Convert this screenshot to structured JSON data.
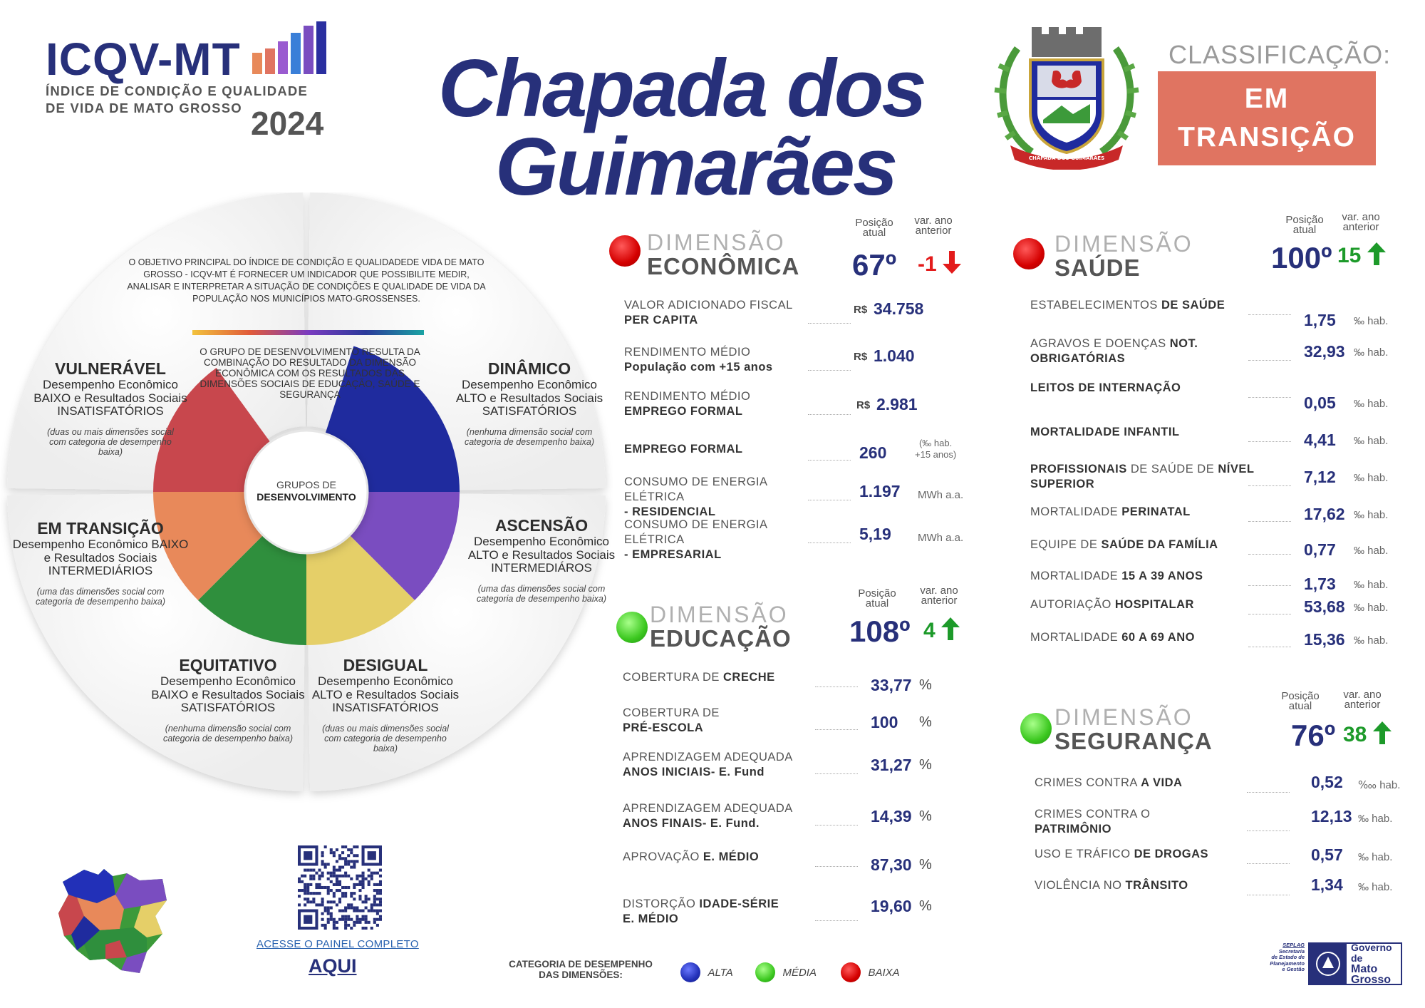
{
  "header": {
    "brand": "ICQV-MT",
    "subtitle_line1": "ÍNDICE DE CONDIÇÃO E QUALIDADE",
    "subtitle_line2": "DE VIDA DE MATO GROSSO",
    "year": "2024",
    "city_line1": "Chapada dos",
    "city_line2": "Guimarães",
    "crest_text": "CHAPADA DOS GUIMARÃES",
    "classification_label": "CLASSIFICAÇÃO:",
    "classification_line1": "EM",
    "classification_line2": "TRANSIÇÃO",
    "colors": {
      "navy": "#27307a",
      "classification": "#e07461"
    }
  },
  "wheel": {
    "objective": "O OBJETIVO PRINCIPAL DO ÍNDICE DE CONDIÇÃO E QUALIDADEDE VIDA DE MATO GROSSO - ICQV-MT É FORNECER UM INDICADOR QUE POSSIBILITE MEDIR, ANALISAR E INTERPRETAR A SITUAÇÃO DE CONDIÇÕES E QUALIDADE DE VIDA DA POPULAÇÃO NOS MUNICÍPIOS MATO-GROSSENSES.",
    "group_text": "O GRUPO DE DESENVOLVIMENTO RESULTA DA COMBINAÇÃO DO RESULTADO DA DIMENSÃO ECONÔMICA COM OS RESULTADOS DAS DIMENSÕES SOCIAIS DE EDUCAÇÃO, SAÚDE E SEGURANÇA",
    "hub_line1": "GRUPOS DE",
    "hub_line2": "DESENVOLVIMENTO",
    "segments": {
      "vulneravel": {
        "title": "VULNERÁVEL",
        "desc": "Desempenho Econômico BAIXO e Resultados Sociais INSATISFATÓRIOS",
        "note": "(duas ou mais dimensões social com categoria de desempenho baixa)",
        "color": "#c8474d"
      },
      "dinamico": {
        "title": "DINÂMICO",
        "desc": "Desempenho Econômico ALTO e Resultados Sociais SATISFATÓRIOS",
        "note": "(nenhuma dimensão social com categoria de desempenho baixa)",
        "color": "#1f2b9e"
      },
      "transicao": {
        "title": "EM TRANSIÇÃO",
        "desc": "Desempenho Econômico BAIXO e Resultados Sociais INTERMEDIÁRIOS",
        "note": "(uma das dimensões social com categoria de desempenho baixa)",
        "color": "#e8895a"
      },
      "ascensao": {
        "title": "ASCENSÃO",
        "desc": "Desempenho Econômico ALTO e Resultados Sociais INTERMEDIÁROS",
        "note": "(uma das dimensões social com categoria de desempenho baixa)",
        "color": "#7a4dc0"
      },
      "equitativo": {
        "title": "EQUITATIVO",
        "desc": "Desempenho Econômico BAIXO e Resultados Sociais SATISFATÓRIOS",
        "note": "(nenhuma dimensão social com categoria de desempenho baixa)",
        "color": "#2f8f3d"
      },
      "desigual": {
        "title": "DESIGUAL",
        "desc": "Desempenho Econômico ALTO e Resultados Sociais INSATISFATÓRIOS",
        "note": "(duas ou mais dimensões social com categoria de desempenho baixa)",
        "color": "#e5cf68"
      }
    }
  },
  "labels": {
    "dimensao": "DIMENSÃO",
    "posicao_line1": "Posição",
    "posicao_line2": "atual",
    "var_line1": "var. ano",
    "var_line2": "anterior"
  },
  "economica": {
    "name": "ECONÔMICA",
    "position": "67º",
    "variation": "-1",
    "indicators": [
      {
        "line1": "VALOR ADICIONADO FISCAL",
        "line2": "PER CAPITA",
        "prefix": "R$",
        "value": "34.758",
        "unit": ""
      },
      {
        "line1": "RENDIMENTO MÉDIO",
        "line2": "População com +15 anos",
        "prefix": "R$",
        "value": "1.040",
        "unit": ""
      },
      {
        "line1": "RENDIMENTO MÉDIO",
        "line2": "EMPREGO FORMAL",
        "prefix": "R$",
        "value": "2.981",
        "unit": ""
      },
      {
        "line1": "EMPREGO FORMAL",
        "line2": "",
        "prefix": "",
        "value": "260",
        "unit_line1": "(‰ hab.",
        "unit_line2": "+15 anos)"
      },
      {
        "line1": "CONSUMO DE ENERGIA ELÉTRICA",
        "line2": "- RESIDENCIAL",
        "prefix": "",
        "value": "1.197",
        "unit": "MWh a.a."
      },
      {
        "line1": "CONSUMO DE ENERGIA ELÉTRICA",
        "line2": "- EMPRESARIAL",
        "prefix": "",
        "value": "5,19",
        "unit": "MWh a.a."
      }
    ]
  },
  "educacao": {
    "name": "EDUCAÇÃO",
    "position": "108º",
    "variation": "4",
    "indicators": [
      {
        "pre": "COBERTURA DE ",
        "bold": "CRECHE",
        "line2": "",
        "value": "33,77",
        "unit": "%"
      },
      {
        "pre": "COBERTURA DE",
        "bold": "",
        "line2": "PRÉ-ESCOLA",
        "value": "100",
        "unit": "%"
      },
      {
        "pre": "APRENDIZAGEM ADEQUADA",
        "bold": "",
        "line2": "ANOS INICIAIS- E. Fund",
        "value": "31,27",
        "unit": "%"
      },
      {
        "pre": "APRENDIZAGEM ADEQUADA",
        "bold": "",
        "line2": "ANOS FINAIS- E. Fund.",
        "value": "14,39",
        "unit": "%"
      },
      {
        "pre": "APROVAÇÃO ",
        "bold": "E. MÉDIO",
        "line2": "",
        "value": "87,30",
        "unit": "%"
      },
      {
        "pre": "DISTORÇÃO ",
        "bold": "IDADE-SÉRIE",
        "line2": "E. MÉDIO",
        "value": "19,60",
        "unit": "%"
      }
    ]
  },
  "saude": {
    "name": "SAÚDE",
    "position": "100º",
    "variation": "15",
    "indicators": [
      {
        "pre": "ESTABELECIMENTOS ",
        "bold": "DE SAÚDE",
        "line2": "",
        "value": "1,75",
        "unit": "‰ hab."
      },
      {
        "pre": "AGRAVOS E DOENÇAS ",
        "bold": "NOT.",
        "line2": "OBRIGATÓRIAS",
        "value": "32,93",
        "unit": "‰ hab."
      },
      {
        "pre": "",
        "bold": "LEITOS DE INTERNAÇÃO",
        "line2": "",
        "value": "0,05",
        "unit": "‰ hab."
      },
      {
        "pre": "",
        "bold": "MORTALIDADE INFANTIL",
        "line2": "",
        "value": "4,41",
        "unit": "‰ hab."
      },
      {
        "pre": "PROFISSIONAIS",
        "bold": "",
        "mid": " DE SAÚDE DE ",
        "bold2": "NÍVEL",
        "line2": "SUPERIOR",
        "value": "7,12",
        "unit": "‰ hab."
      },
      {
        "pre": "MORTALIDADE ",
        "bold": "PERINATAL",
        "line2": "",
        "value": "17,62",
        "unit": "‰ hab."
      },
      {
        "pre": "EQUIPE DE ",
        "bold": "SAÚDE DA FAMÍLIA",
        "line2": "",
        "value": "0,77",
        "unit": "‰ hab."
      },
      {
        "pre": "MORTALIDADE ",
        "bold": "15 A 39 ANOS",
        "line2": "",
        "value": "1,73",
        "unit": "‰ hab."
      },
      {
        "pre": "AUTORIAÇÃO ",
        "bold": "HOSPITALAR",
        "line2": "",
        "value": "53,68",
        "unit": "‰ hab."
      },
      {
        "pre": "MORTALIDADE ",
        "bold": "60 A 69 ANO",
        "line2": "",
        "value": "15,36",
        "unit": "‰ hab."
      }
    ]
  },
  "seguranca": {
    "name": "SEGURANÇA",
    "position": "76º",
    "variation": "38",
    "indicators": [
      {
        "pre": "CRIMES CONTRA ",
        "bold": "A VIDA",
        "line2": "",
        "value": "0,52",
        "unit": "‱ hab."
      },
      {
        "pre": "CRIMES CONTRA O",
        "bold": "",
        "line2": "PATRIMÔNIO",
        "value": "12,13",
        "unit": "‰ hab."
      },
      {
        "pre": "USO E TRÁFICO ",
        "bold": "DE DROGAS",
        "line2": "",
        "value": "0,57",
        "unit": "‰ hab."
      },
      {
        "pre": "VIOLÊNCIA NO ",
        "bold": "TRÂNSITO",
        "line2": "",
        "value": "1,34",
        "unit": "‰ hab."
      }
    ]
  },
  "footer": {
    "panel_link": "ACESSE O PAINEL COMPLETO",
    "aqui": "AQUI",
    "category_label_line1": "CATEGORIA DE DESEMPENHO",
    "category_label_line2": "DAS DIMENSÕES:",
    "legend": [
      {
        "label": "ALTA",
        "color": "#2230b8"
      },
      {
        "label": "MÉDIA",
        "color": "#3cc820"
      },
      {
        "label": "BAIXA",
        "color": "#d40000"
      }
    ],
    "seplag_line1": "SEPLAG",
    "seplag_line2": "Secretaria",
    "seplag_line3": "de Estado de",
    "seplag_line4": "Planejamento",
    "seplag_line5": "e Gestão",
    "gov_line1": "Governo de",
    "gov_line2": "Mato",
    "gov_line3": "Grosso"
  }
}
